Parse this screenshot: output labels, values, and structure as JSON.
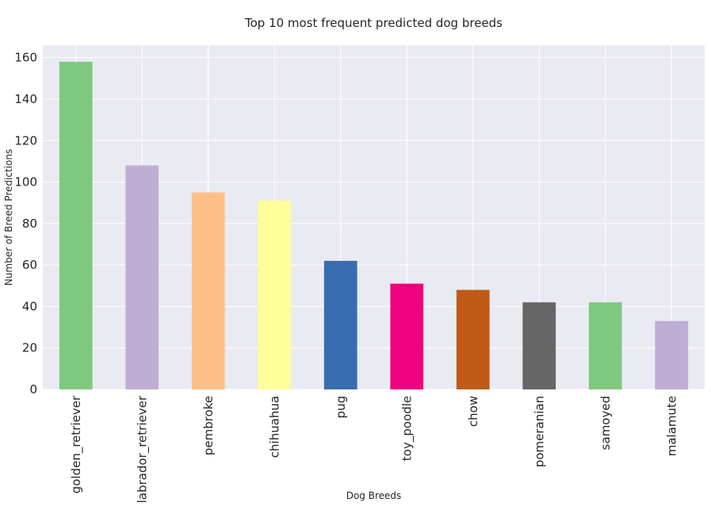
{
  "chart_data": {
    "type": "bar",
    "title": "Top 10 most frequent predicted dog breeds",
    "xlabel": "Dog Breeds",
    "ylabel": "Number of Breed Predictions",
    "categories": [
      "golden_retriever",
      "labrador_retriever",
      "pembroke",
      "chihuahua",
      "pug",
      "toy_poodle",
      "chow",
      "pomeranian",
      "samoyed",
      "malamute"
    ],
    "values": [
      158,
      108,
      95,
      91,
      62,
      51,
      48,
      42,
      42,
      33
    ],
    "colors": [
      "#7fc97f",
      "#beaed4",
      "#fdc086",
      "#ffff99",
      "#386cb0",
      "#f0027f",
      "#bf5b17",
      "#666666",
      "#7fc97f",
      "#beaed4"
    ],
    "ylim": [
      0,
      166
    ],
    "yticks": [
      0,
      20,
      40,
      60,
      80,
      100,
      120,
      140,
      160
    ],
    "grid": true,
    "background": "#eaeaf2"
  }
}
